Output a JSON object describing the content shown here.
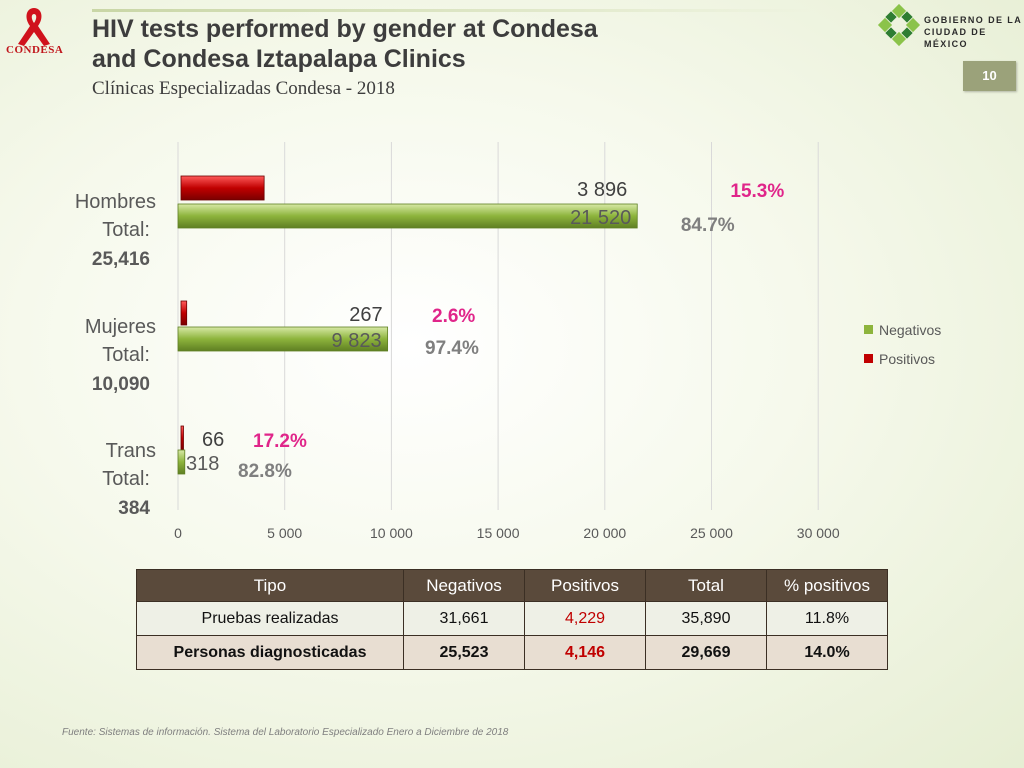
{
  "header": {
    "title_line1": "HIV tests performed by gender at Condesa",
    "title_line2": "and Condesa Iztapalapa Clinics",
    "subtitle": "Clínicas Especializadas Condesa - 2018",
    "left_logo_text": "CONDESA",
    "gov_logo_line1": "GOBIERNO DE LA",
    "gov_logo_line2": "CIUDAD DE MÉXICO",
    "page_number": "10"
  },
  "colors": {
    "negativos": "#8db43c",
    "positivos": "#c00000",
    "pct_positive": "#e0258a",
    "pct_negative": "#7f7f7f",
    "table_header": "#5a4a3b"
  },
  "chart_data": {
    "type": "bar",
    "orientation": "horizontal",
    "stacked": false,
    "categories": [
      "Hombres",
      "Mujeres",
      "Trans"
    ],
    "category_totals": [
      {
        "label": "Total:",
        "value": "25,416"
      },
      {
        "label": "Total:",
        "value": "10,090"
      },
      {
        "label": "Total:",
        "value": "384"
      }
    ],
    "series": [
      {
        "name": "Negativos",
        "values": [
          21520,
          9823,
          318
        ],
        "labels": [
          "21 520",
          "9 823",
          "318"
        ],
        "pct_labels": [
          "84.7%",
          "97.4%",
          "82.8%"
        ]
      },
      {
        "name": "Positivos",
        "values": [
          3896,
          267,
          66
        ],
        "labels": [
          "3 896",
          "267",
          "66"
        ],
        "pct_labels": [
          "15.3%",
          "2.6%",
          "17.2%"
        ]
      }
    ],
    "xlim": [
      0,
      30000
    ],
    "xticks": [
      0,
      5000,
      10000,
      15000,
      20000,
      25000,
      30000
    ],
    "xtick_labels": [
      "0",
      "5 000",
      "10 000",
      "15 000",
      "20 000",
      "25 000",
      "30 000"
    ],
    "grid": true,
    "legend_position": "right"
  },
  "table": {
    "headers": [
      "Tipo",
      "Negativos",
      "Positivos",
      "Total",
      "% positivos"
    ],
    "rows": [
      [
        "Pruebas realizadas",
        "31,661",
        "4,229",
        "35,890",
        "11.8%"
      ],
      [
        "Personas diagnosticadas",
        "25,523",
        "4,146",
        "29,669",
        "14.0%"
      ]
    ]
  },
  "footer": "Fuente: Sistemas de información. Sistema del Laboratorio Especializado Enero a Diciembre de 2018"
}
